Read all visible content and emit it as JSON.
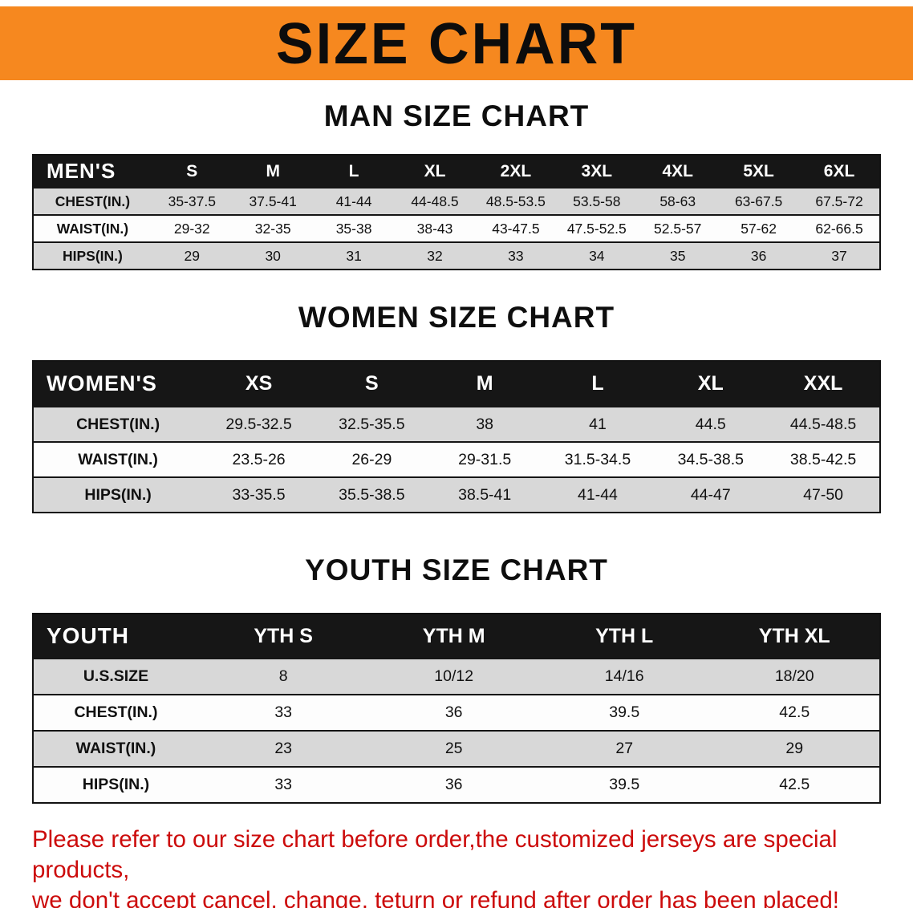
{
  "banner": {
    "title": "SIZE CHART",
    "bg_color": "#f6881f",
    "text_color": "#0c0c0c"
  },
  "colors": {
    "header_row_bg": "#161616",
    "stripe_row_bg": "#d8d8d8",
    "footer_text": "#cc0b0b"
  },
  "sections": [
    {
      "heading": "MAN SIZE CHART",
      "table": {
        "header": [
          "MEN'S",
          "S",
          "M",
          "L",
          "XL",
          "2XL",
          "3XL",
          "4XL",
          "5XL",
          "6XL"
        ],
        "rows": [
          {
            "label": "CHEST(IN.)",
            "values": [
              "35-37.5",
              "37.5-41",
              "41-44",
              "44-48.5",
              "48.5-53.5",
              "53.5-58",
              "58-63",
              "63-67.5",
              "67.5-72"
            ]
          },
          {
            "label": "WAIST(IN.)",
            "values": [
              "29-32",
              "32-35",
              "35-38",
              "38-43",
              "43-47.5",
              "47.5-52.5",
              "52.5-57",
              "57-62",
              "62-66.5"
            ]
          },
          {
            "label": "HIPS(IN.)",
            "values": [
              "29",
              "30",
              "31",
              "32",
              "33",
              "34",
              "35",
              "36",
              "37"
            ]
          }
        ]
      }
    },
    {
      "heading": "WOMEN SIZE CHART",
      "table": {
        "header": [
          "WOMEN'S",
          "XS",
          "S",
          "M",
          "L",
          "XL",
          "XXL"
        ],
        "rows": [
          {
            "label": "CHEST(IN.)",
            "values": [
              "29.5-32.5",
              "32.5-35.5",
              "38",
              "41",
              "44.5",
              "44.5-48.5"
            ]
          },
          {
            "label": "WAIST(IN.)",
            "values": [
              "23.5-26",
              "26-29",
              "29-31.5",
              "31.5-34.5",
              "34.5-38.5",
              "38.5-42.5"
            ]
          },
          {
            "label": "HIPS(IN.)",
            "values": [
              "33-35.5",
              "35.5-38.5",
              "38.5-41",
              "41-44",
              "44-47",
              "47-50"
            ]
          }
        ]
      }
    },
    {
      "heading": "YOUTH SIZE CHART",
      "table": {
        "header": [
          "YOUTH",
          "YTH S",
          "YTH M",
          "YTH L",
          "YTH XL"
        ],
        "rows": [
          {
            "label": "U.S.SIZE",
            "values": [
              "8",
              "10/12",
              "14/16",
              "18/20"
            ]
          },
          {
            "label": "CHEST(IN.)",
            "values": [
              "33",
              "36",
              "39.5",
              "42.5"
            ]
          },
          {
            "label": "WAIST(IN.)",
            "values": [
              "23",
              "25",
              "27",
              "29"
            ]
          },
          {
            "label": "HIPS(IN.)",
            "values": [
              "33",
              "36",
              "39.5",
              "42.5"
            ]
          }
        ]
      }
    }
  ],
  "footer": {
    "line1": "Please refer to our size chart before order,the customized jerseys are special products,",
    "line2": "we don't accept cancel, change, teturn or refund after order has been placed!"
  }
}
